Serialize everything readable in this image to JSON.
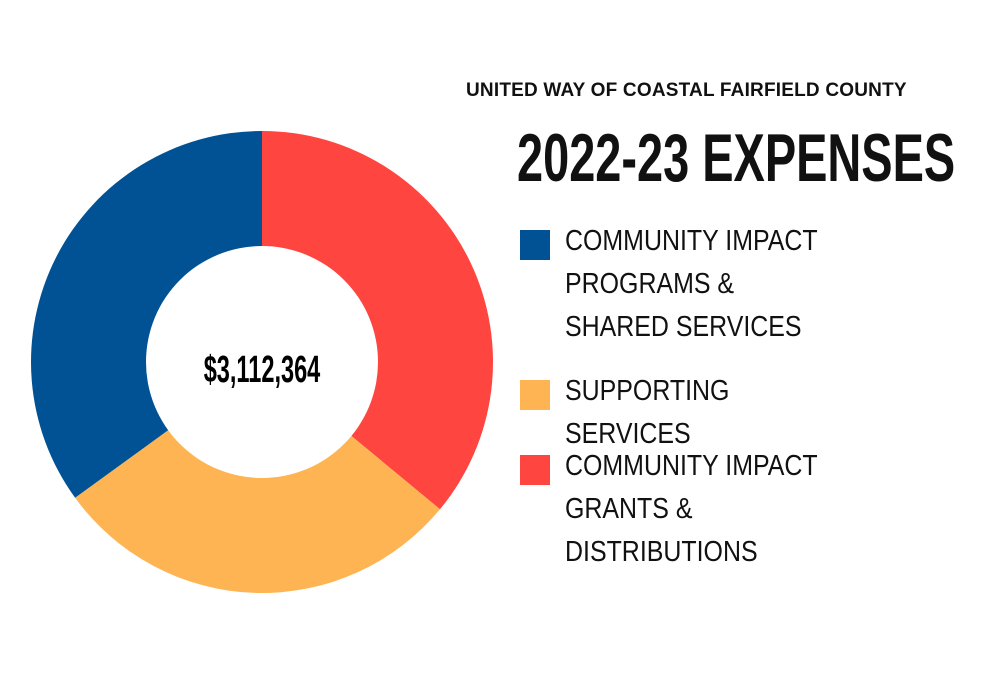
{
  "subtitle": "UNITED WAY OF COASTAL FAIRFIELD COUNTY",
  "title": "2022-23 EXPENSES",
  "center_total": "$3,112,364",
  "chart_data": {
    "type": "pie",
    "variant": "donut",
    "title": "2022-23 EXPENSES",
    "subtitle": "UNITED WAY OF COASTAL FAIRFIELD COUNTY",
    "total": "$3,112,364",
    "legend_position": "right",
    "categories": [
      "COMMUNITY IMPACT PROGRAMS & SHARED SERVICES",
      "SUPPORTING SERVICES",
      "COMMUNITY IMPACT GRANTS & DISTRIBUTIONS"
    ],
    "values": [
      35,
      29,
      36
    ],
    "colors": [
      "#005295",
      "#feb453",
      "#fe453f"
    ]
  },
  "legend": [
    {
      "label": "COMMUNITY IMPACT PROGRAMS & SHARED SERVICES",
      "color": "#005295"
    },
    {
      "label": "SUPPORTING SERVICES",
      "color": "#feb453"
    },
    {
      "label": "COMMUNITY IMPACT GRANTS & DISTRIBUTIONS",
      "color": "#fe453f"
    }
  ]
}
